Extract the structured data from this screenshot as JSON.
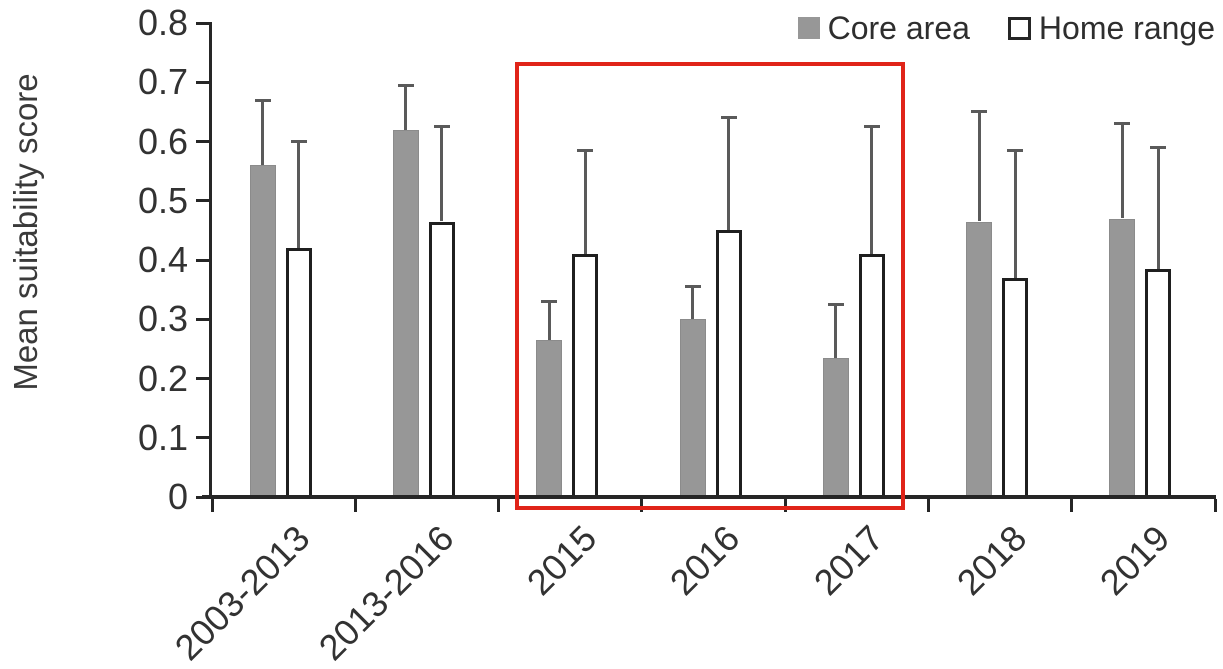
{
  "chart_data": {
    "type": "bar",
    "title": "",
    "categories": [
      "2003-2013",
      "2013-2016",
      "2015",
      "2016",
      "2017",
      "2018",
      "2019"
    ],
    "series": [
      {
        "name": "Core area",
        "style": "filled",
        "color": "#979797",
        "values": [
          0.56,
          0.62,
          0.265,
          0.3,
          0.235,
          0.465,
          0.47
        ],
        "error_up": [
          0.11,
          0.075,
          0.065,
          0.055,
          0.09,
          0.185,
          0.16
        ]
      },
      {
        "name": "Home range",
        "style": "open",
        "color": "#ffffff",
        "border_color": "#1f1f1f",
        "values": [
          0.42,
          0.465,
          0.41,
          0.45,
          0.41,
          0.37,
          0.385
        ],
        "error_up": [
          0.18,
          0.16,
          0.175,
          0.19,
          0.215,
          0.215,
          0.205
        ]
      }
    ],
    "xlabel": "",
    "ylabel": "Mean suitability score",
    "ylim": [
      0,
      0.8
    ],
    "ytick_step": 0.1,
    "ytick_labels": [
      "0",
      "0.1",
      "0.2",
      "0.3",
      "0.4",
      "0.5",
      "0.6",
      "0.7",
      "0.8"
    ],
    "grid": false,
    "error_bars": "upper-only",
    "xtick_rotation_deg": 45,
    "legend_position": "top-right",
    "highlight_box": {
      "from_category": "2015",
      "to_category": "2017",
      "color": "#e02419"
    }
  },
  "legend": {
    "items": [
      {
        "label": "Core area",
        "swatch": "gray-filled-square"
      },
      {
        "label": "Home range",
        "swatch": "white-open-square"
      }
    ]
  },
  "colors": {
    "bar_fill_gray": "#979797",
    "bar_border_black": "#1f1f1f",
    "error_bar": "#5a5a5a",
    "axis": "#262626",
    "highlight_red": "#e02419",
    "text": "#323232"
  }
}
